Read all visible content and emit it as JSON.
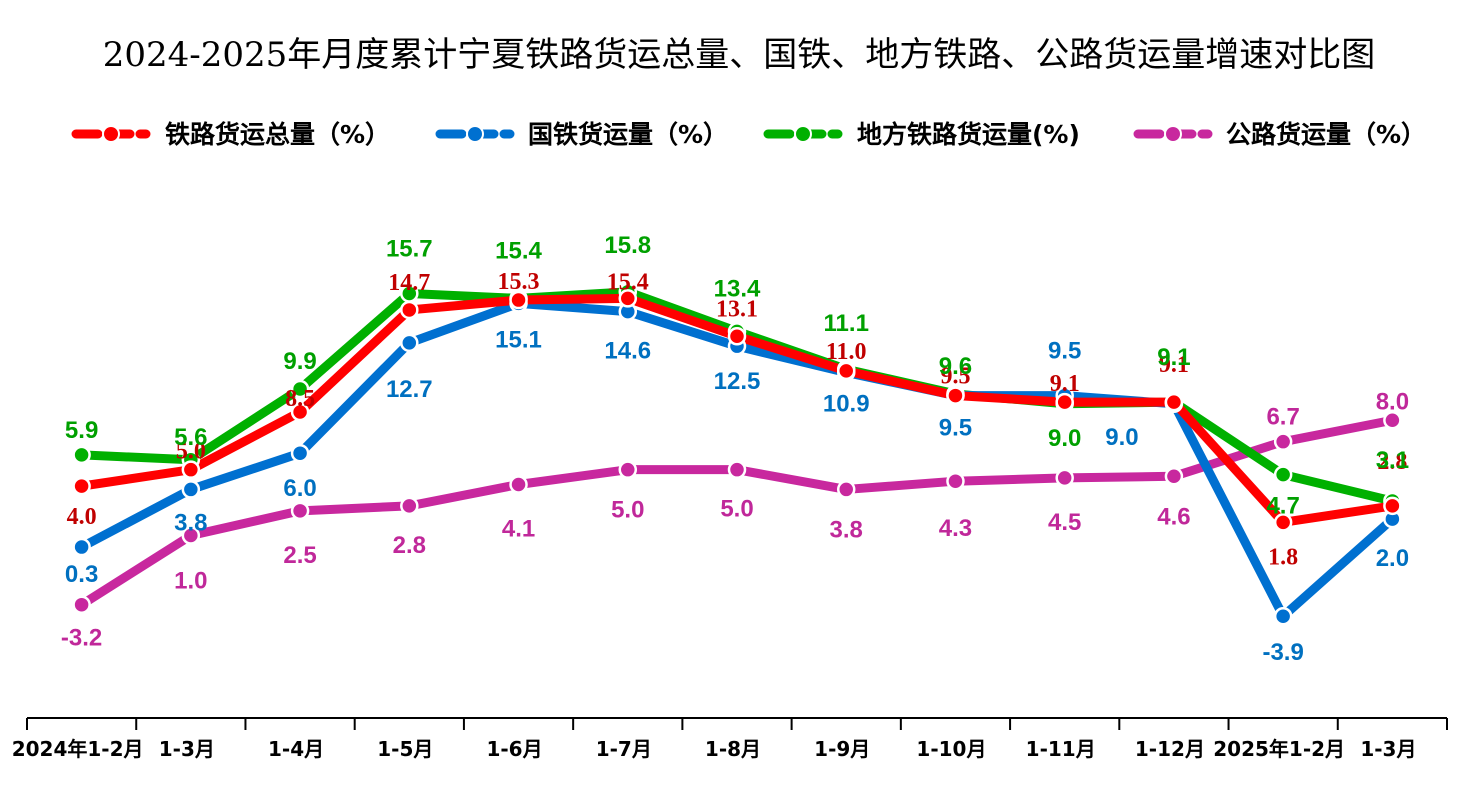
{
  "chart_data": {
    "type": "line",
    "title": "2024-2025年月度累计宁夏铁路货运总量、国铁、地方铁路、公路货运量增速对比图",
    "categories": [
      "2024年1-2月",
      "1-3月",
      "1-4月",
      "1-5月",
      "1-6月",
      "1-7月",
      "1-8月",
      "1-9月",
      "1-10月",
      "1-11月",
      "1-12月",
      "2025年1-2月",
      "1-3月"
    ],
    "ylim": [
      -6,
      18
    ],
    "grid": false,
    "legend_position": "top",
    "series": [
      {
        "name": "铁路货运总量（%）",
        "color": "#ff0000",
        "label_color": "#c00000",
        "label_font": "serif",
        "values": [
          4.0,
          5.0,
          8.5,
          14.7,
          15.3,
          15.4,
          13.1,
          11.0,
          9.5,
          9.1,
          9.1,
          1.8,
          2.8
        ]
      },
      {
        "name": "国铁货运量（%）",
        "color": "#0070d0",
        "label_color": "#0070c0",
        "label_font": "sans",
        "values": [
          0.3,
          3.8,
          6.0,
          12.7,
          15.1,
          14.6,
          12.5,
          10.9,
          9.5,
          9.5,
          9.0,
          -3.9,
          2.0
        ]
      },
      {
        "name": "地方铁路货运量(%)",
        "color": "#00b000",
        "label_color": "#00a000",
        "label_font": "sans",
        "values": [
          5.9,
          5.6,
          9.9,
          15.7,
          15.4,
          15.8,
          13.4,
          11.1,
          9.6,
          9.0,
          9.1,
          4.7,
          3.1
        ]
      },
      {
        "name": "公路货运量（%）",
        "color": "#c8289e",
        "label_color": "#c0289a",
        "label_font": "sans",
        "values": [
          -3.2,
          1.0,
          2.5,
          2.8,
          4.1,
          5.0,
          5.0,
          3.8,
          4.3,
          4.5,
          4.6,
          6.7,
          8.0
        ]
      }
    ]
  }
}
